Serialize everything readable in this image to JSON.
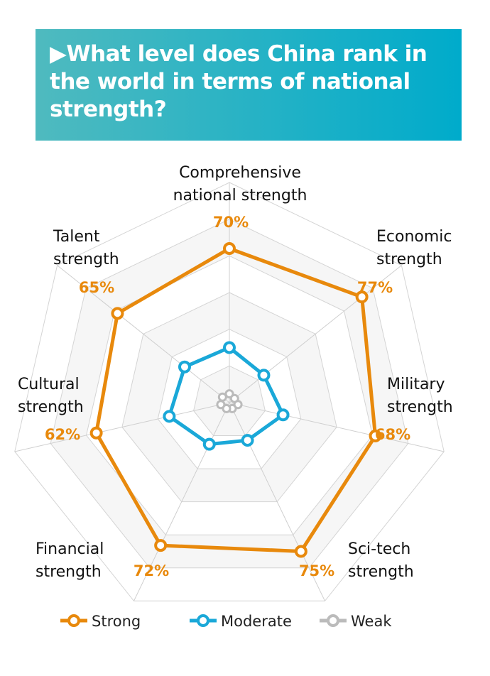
{
  "header": {
    "title": "▶What level does China rank in the world in terms of national strength?"
  },
  "chart_data": {
    "type": "radar",
    "title": "▶What level does China rank in the world in terms of national strength?",
    "categories": [
      [
        "Comprehensive",
        "national strength"
      ],
      [
        "Economic",
        "strength"
      ],
      [
        "Military",
        "strength"
      ],
      [
        "Sci-tech",
        "strength"
      ],
      [
        "Financial",
        "strength"
      ],
      [
        "Cultural",
        "strength"
      ],
      [
        "Talent",
        "strength"
      ]
    ],
    "value_labels": [
      "70%",
      "77%",
      "68%",
      "75%",
      "72%",
      "62%",
      "65%"
    ],
    "series": [
      {
        "name": "Strong",
        "color": "#e8890c",
        "values": [
          70,
          77,
          68,
          75,
          72,
          62,
          65
        ]
      },
      {
        "name": "Moderate",
        "color": "#1aa8d8",
        "values": [
          25,
          20,
          25,
          19,
          21,
          28,
          26
        ]
      },
      {
        "name": "Weak",
        "color": "#bbbbbb",
        "values": [
          4,
          3,
          4,
          3,
          3,
          4,
          4
        ]
      }
    ],
    "range": [
      0,
      100
    ],
    "grid": true,
    "legend": "bottom"
  }
}
